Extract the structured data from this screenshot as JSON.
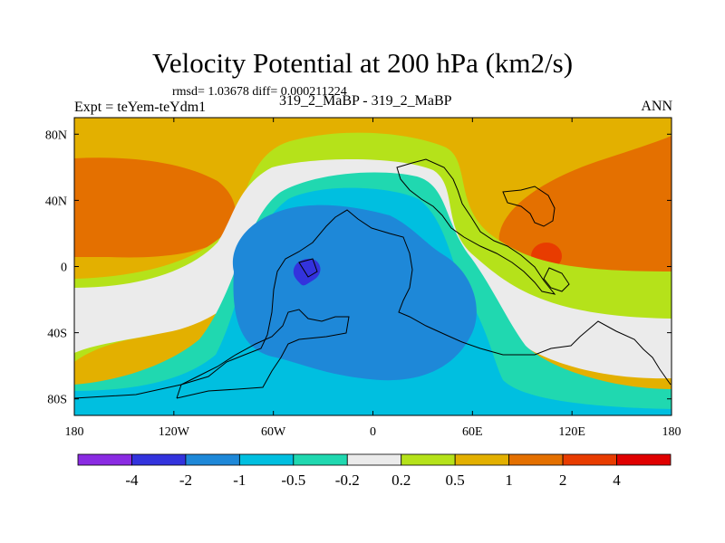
{
  "chart_data": {
    "type": "contour-map",
    "title": "Velocity Potential at 200 hPa (km2/s)",
    "stats": "rmsd= 1.03678 diff= 0.000211224",
    "expt_label": "Expt = teYem-teYdm1",
    "cases": "319_2_MaBP - 319_2_MaBP",
    "season": "ANN",
    "x_range": [
      -180,
      180
    ],
    "y_range": [
      -90,
      90
    ],
    "x_ticks": [
      {
        "value": -180,
        "label": "180"
      },
      {
        "value": -120,
        "label": "120W"
      },
      {
        "value": -60,
        "label": "60W"
      },
      {
        "value": 0,
        "label": "0"
      },
      {
        "value": 60,
        "label": "60E"
      },
      {
        "value": 120,
        "label": "120E"
      },
      {
        "value": 180,
        "label": "180"
      }
    ],
    "y_ticks": [
      {
        "value": 80,
        "label": "80N"
      },
      {
        "value": 40,
        "label": "40N"
      },
      {
        "value": 0,
        "label": "0"
      },
      {
        "value": -40,
        "label": "40S"
      },
      {
        "value": -80,
        "label": "80S"
      }
    ],
    "colorbar": {
      "colors": [
        "#8a2be2",
        "#3333dd",
        "#1e88d8",
        "#00bfe0",
        "#20d8b0",
        "#ebebeb",
        "#b5e21a",
        "#e3b000",
        "#e47000",
        "#e83c00",
        "#e00000"
      ],
      "boundary_labels": [
        "-4",
        "-2",
        "-1",
        "-0.5",
        "-0.2",
        "0.2",
        "0.5",
        "1",
        "2",
        "4"
      ]
    },
    "field_levels": [
      {
        "name": "0.5 to 1",
        "color": "#e3b000"
      },
      {
        "name": "1 to 2",
        "color": "#e47000"
      },
      {
        "name": "2 to 4",
        "color": "#e83c00"
      },
      {
        "name": "0.2 to 0.5",
        "color": "#b5e21a"
      },
      {
        "name": "-0.2 to 0.2",
        "color": "#ebebeb"
      },
      {
        "name": "-0.5 to -0.2",
        "color": "#20d8b0"
      },
      {
        "name": "-1 to -0.5",
        "color": "#00bfe0"
      },
      {
        "name": "-2 to -1",
        "color": "#1e88d8"
      },
      {
        "name": "-4 to -2",
        "color": "#3333dd"
      }
    ]
  }
}
